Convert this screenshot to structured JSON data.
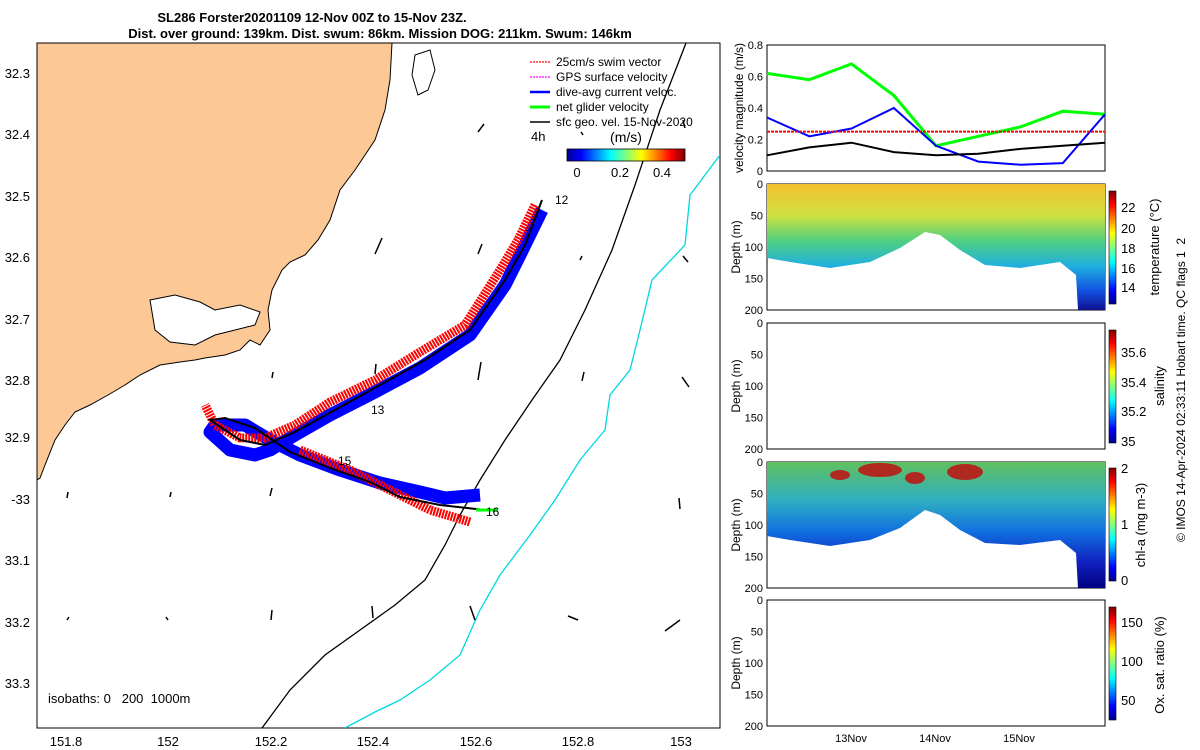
{
  "title": {
    "line1": "SL286 Forster20201109 12-Nov 00Z to 15-Nov 23Z.",
    "line2": "Dist. over ground: 139km. Dist. swum: 86km. Mission DOG: 211km. Swum: 146km"
  },
  "map": {
    "lon_ticks": [
      "151.8",
      "152",
      "152.2",
      "152.4",
      "152.6",
      "152.8",
      "153"
    ],
    "lat_ticks": [
      "32.3",
      "32.4",
      "32.5",
      "32.6",
      "32.7",
      "32.8",
      "32.9",
      "-33",
      "33.1",
      "33.2",
      "33.3"
    ],
    "legend": [
      "25cm/s swim vector",
      "GPS surface velocity",
      "dive-avg current veloc.",
      "net glider velocity",
      "sfc geo. vel. 15-Nov-2020"
    ],
    "legend_colors": [
      "#ff0000",
      "#ff00ff",
      "#0000ff",
      "#00ff00",
      "#000000"
    ],
    "colorbar_label": "(m/s)",
    "colorbar_ticks": [
      "0",
      "0.2",
      "0.4"
    ],
    "interval_label": "4h",
    "isobaths_label": "isobaths: 0   200  1000m",
    "day_labels": [
      "12",
      "13",
      "15",
      "16"
    ]
  },
  "panels": {
    "velocity": {
      "ylabel": "velocity magnitude (m/s)",
      "yticks": [
        "0",
        "0.2",
        "0.4",
        "0.6",
        "0.8"
      ]
    },
    "depth_ticks": [
      "0",
      "50",
      "100",
      "150",
      "200"
    ],
    "depth_label": "Depth (m)",
    "temperature": {
      "label": "temperature (°C)",
      "ticks": [
        "14",
        "16",
        "18",
        "20",
        "22"
      ]
    },
    "salinity": {
      "label": "salinity",
      "ticks": [
        "35",
        "35.2",
        "35.4",
        "35.6"
      ]
    },
    "chla": {
      "label": "chl-a (mg m-3)",
      "ticks": [
        "0",
        "1",
        "2"
      ]
    },
    "oxygen": {
      "label": "Ox. sat. ratio (%)",
      "ticks": [
        "50",
        "100",
        "150"
      ]
    },
    "x_ticks": [
      "13Nov",
      "14Nov",
      "15Nov"
    ],
    "side_note": "© IMOS 14-Apr-2024 02:33:11 Hobart time. QC flags 1  2"
  },
  "chart_data": [
    {
      "type": "line",
      "title": "",
      "xlabel": "",
      "ylabel": "velocity magnitude (m/s)",
      "ylim": [
        0,
        0.8
      ],
      "x": [
        "12Nov",
        "12.5Nov",
        "13Nov",
        "13.5Nov",
        "14Nov",
        "14.5Nov",
        "15Nov",
        "15.5Nov",
        "16Nov"
      ],
      "series": [
        {
          "name": "net glider velocity",
          "color": "#00ff00",
          "values": [
            0.62,
            0.58,
            0.68,
            0.48,
            0.16,
            0.22,
            0.28,
            0.38,
            0.36
          ]
        },
        {
          "name": "dive-avg current veloc.",
          "color": "#0000ff",
          "values": [
            0.34,
            0.22,
            0.27,
            0.4,
            0.16,
            0.06,
            0.04,
            0.05,
            0.36
          ]
        },
        {
          "name": "sfc geo. vel. 15-Nov-2020",
          "color": "#000000",
          "values": [
            0.1,
            0.15,
            0.18,
            0.12,
            0.1,
            0.11,
            0.14,
            0.16,
            0.18
          ]
        },
        {
          "name": "25cm/s swim vector",
          "color": "#ff0000",
          "values": [
            0.25,
            0.25,
            0.25,
            0.25,
            0.25,
            0.25,
            0.25,
            0.25,
            0.25
          ]
        }
      ]
    },
    {
      "type": "heatmap",
      "ylabel": "Depth (m)",
      "colorbar_label": "temperature (°C)",
      "clim": [
        13,
        23.5
      ],
      "ylim": [
        200,
        0
      ],
      "max_depth": [
        120,
        130,
        135,
        110,
        75,
        115,
        135,
        140,
        195
      ]
    },
    {
      "type": "heatmap",
      "ylabel": "Depth (m)",
      "colorbar_label": "salinity",
      "clim": [
        35,
        35.7
      ],
      "ylim": [
        200,
        0
      ]
    },
    {
      "type": "heatmap",
      "ylabel": "Depth (m)",
      "colorbar_label": "chl-a (mg m-3)",
      "clim": [
        0,
        2
      ],
      "ylim": [
        200,
        0
      ],
      "max_depth": [
        120,
        130,
        135,
        110,
        75,
        115,
        135,
        140,
        195
      ]
    },
    {
      "type": "heatmap",
      "ylabel": "Depth (m)",
      "colorbar_label": "Ox. sat. ratio (%)",
      "clim": [
        25,
        170
      ],
      "ylim": [
        200,
        0
      ]
    }
  ]
}
